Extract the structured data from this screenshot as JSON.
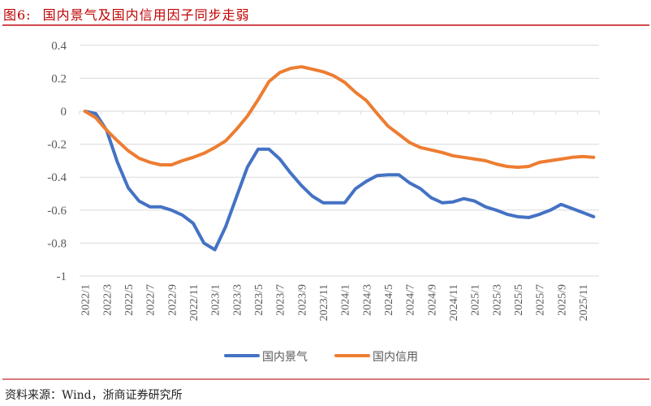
{
  "figure": {
    "number": "图6:",
    "title": "国内景气及国内信用因子同步走弱",
    "source": "资料来源：Wind，浙商证券研究所"
  },
  "colors": {
    "title_red": "#C00000",
    "series_blue": "#4472C4",
    "series_orange": "#ED7D31",
    "gridline": "#D9D9D9"
  },
  "chart_data": {
    "type": "line",
    "title": "国内景气及国内信用因子同步走弱",
    "xlabel": "",
    "ylabel": "",
    "ylim": [
      -1,
      0.4
    ],
    "yticks": [
      0.4,
      0.2,
      0,
      -0.2,
      -0.4,
      -0.6,
      -0.8,
      -1
    ],
    "ytick_labels": [
      "0.4",
      "0.2",
      "0",
      "-0.2",
      "-0.4",
      "-0.6",
      "-0.8",
      "-1"
    ],
    "grid": true,
    "legend_position": "bottom",
    "xtick_labels": [
      "2022/1",
      "2022/3",
      "2022/5",
      "2022/7",
      "2022/9",
      "2022/11",
      "2023/1",
      "2023/3",
      "2023/5",
      "2023/7",
      "2023/9",
      "2023/11",
      "2024/1",
      "2024/3",
      "2024/5",
      "2024/7",
      "2024/9",
      "2024/11",
      "2025/1",
      "2025/3",
      "2025/5",
      "2025/7",
      "2025/9",
      "2025/11"
    ],
    "x": [
      "2022/1",
      "2022/2",
      "2022/3",
      "2022/4",
      "2022/5",
      "2022/6",
      "2022/7",
      "2022/8",
      "2022/9",
      "2022/10",
      "2022/11",
      "2022/12",
      "2023/1",
      "2023/2",
      "2023/3",
      "2023/4",
      "2023/5",
      "2023/6",
      "2023/7",
      "2023/8",
      "2023/9",
      "2023/10",
      "2023/11",
      "2023/12",
      "2024/1",
      "2024/2",
      "2024/3",
      "2024/4",
      "2024/5",
      "2024/6",
      "2024/7",
      "2024/8",
      "2024/9",
      "2024/10",
      "2024/11",
      "2024/12",
      "2025/1",
      "2025/2",
      "2025/3",
      "2025/4",
      "2025/5",
      "2025/6",
      "2025/7",
      "2025/8",
      "2025/9",
      "2025/10",
      "2025/11",
      "2025/12"
    ],
    "series": [
      {
        "name": "国内景气",
        "color": "#4472C4",
        "values": [
          0,
          -0.015,
          -0.115,
          -0.31,
          -0.465,
          -0.545,
          -0.58,
          -0.58,
          -0.6,
          -0.63,
          -0.68,
          -0.8,
          -0.84,
          -0.7,
          -0.52,
          -0.34,
          -0.23,
          -0.23,
          -0.29,
          -0.375,
          -0.45,
          -0.515,
          -0.555,
          -0.555,
          -0.555,
          -0.47,
          -0.425,
          -0.39,
          -0.385,
          -0.385,
          -0.435,
          -0.47,
          -0.525,
          -0.555,
          -0.55,
          -0.53,
          -0.545,
          -0.58,
          -0.6,
          -0.625,
          -0.64,
          -0.645,
          -0.625,
          -0.6,
          -0.565,
          -0.59,
          -0.615,
          -0.64
        ]
      },
      {
        "name": "国内信用",
        "color": "#ED7D31",
        "values": [
          0,
          -0.04,
          -0.115,
          -0.18,
          -0.24,
          -0.285,
          -0.31,
          -0.325,
          -0.325,
          -0.3,
          -0.28,
          -0.255,
          -0.22,
          -0.18,
          -0.11,
          -0.03,
          0.07,
          0.18,
          0.235,
          0.26,
          0.27,
          0.255,
          0.24,
          0.215,
          0.175,
          0.115,
          0.065,
          -0.015,
          -0.09,
          -0.14,
          -0.19,
          -0.22,
          -0.235,
          -0.25,
          -0.27,
          -0.28,
          -0.29,
          -0.3,
          -0.32,
          -0.335,
          -0.34,
          -0.335,
          -0.31,
          -0.3,
          -0.29,
          -0.28,
          -0.275,
          -0.28
        ]
      }
    ]
  },
  "legend": {
    "items": [
      {
        "label": "国内景气",
        "color": "#4472C4"
      },
      {
        "label": "国内信用",
        "color": "#ED7D31"
      }
    ]
  }
}
